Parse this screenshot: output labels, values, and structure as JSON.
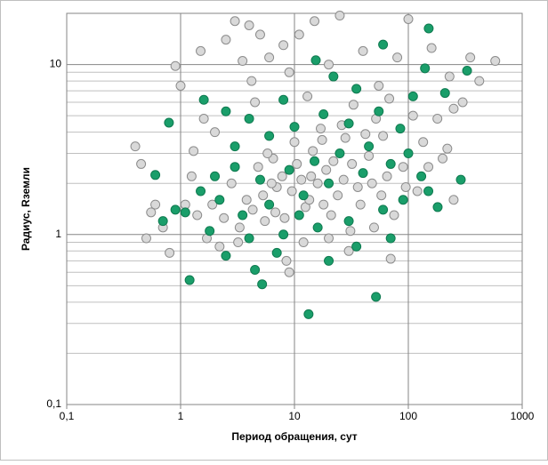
{
  "chart_data": {
    "type": "scatter",
    "x_label": "Период обращения, сут",
    "y_label": "Радиус, Rземли",
    "xlim": [
      0.1,
      1000
    ],
    "ylim": [
      0.1,
      20
    ],
    "log_x": true,
    "log_y": true,
    "grid": true,
    "minor_grid_y": true,
    "xticks": [
      {
        "value": 0.1,
        "label": "0,1"
      },
      1,
      10,
      100,
      1000
    ],
    "yticks": [
      {
        "value": 0.1,
        "label": "0,1"
      },
      1,
      10
    ],
    "series": [
      {
        "color": "#d9d9d9",
        "x": [
          0.4,
          0.45,
          0.5,
          0.6,
          0.7,
          0.8,
          0.9,
          1.0,
          1.1,
          1.3,
          1.5,
          1.7,
          2,
          2.2,
          2.5,
          3,
          3.2,
          3.5,
          4,
          4.2,
          4.5,
          5,
          5.5,
          6,
          6.5,
          7,
          8,
          8.5,
          9,
          10,
          11,
          12,
          13,
          14,
          15,
          17,
          18,
          20,
          22,
          25,
          28,
          30,
          33,
          36,
          40,
          45,
          50,
          55,
          60,
          70,
          80,
          90,
          100,
          110,
          120,
          135,
          160,
          180,
          200,
          230,
          250,
          300,
          350,
          420,
          580,
          2.8,
          3.8,
          4.8,
          5.8,
          6.8,
          7.8,
          9.5,
          10.5,
          12.5,
          14.5,
          16,
          19,
          24,
          27,
          32,
          38,
          48,
          58,
          65,
          75,
          95,
          150,
          220,
          1.4,
          1.9,
          2.4,
          3.3,
          4.3,
          5.3,
          6.3,
          8.2,
          11.5,
          13.5,
          17.5,
          21,
          26,
          31,
          42,
          52,
          68,
          0.55,
          1.25,
          1.6,
          9,
          20,
          250
        ],
        "values": [
          3.3,
          2.6,
          0.95,
          1.5,
          1.1,
          0.78,
          9.8,
          7.5,
          1.5,
          3.1,
          12,
          0.95,
          4,
          0.85,
          14,
          18,
          0.9,
          10.5,
          17,
          8,
          6,
          15,
          1.2,
          11,
          2.8,
          1.9,
          13,
          0.7,
          9,
          3.5,
          15,
          0.9,
          6.5,
          2.2,
          18,
          4.2,
          1.5,
          10,
          2.7,
          19.4,
          3.7,
          0.8,
          5.8,
          1.9,
          12,
          2.9,
          1.1,
          7.5,
          3.8,
          0.72,
          11,
          2.5,
          18.5,
          5,
          1.8,
          3.5,
          12.5,
          4.8,
          2.8,
          8.5,
          5.5,
          6,
          11,
          8,
          10.5,
          2.0,
          1.6,
          2.5,
          3.0,
          1.35,
          2.2,
          1.8,
          2.6,
          1.45,
          3.1,
          2.0,
          2.4,
          1.7,
          2.1,
          2.6,
          1.5,
          2.0,
          1.7,
          2.2,
          1.3,
          1.9,
          2.5,
          3.2,
          1.3,
          1.5,
          1.25,
          1.1,
          1.4,
          1.7,
          2.0,
          1.25,
          2.1,
          1.6,
          3.6,
          1.3,
          4.4,
          1.05,
          3.9,
          4.8,
          6.3,
          1.35,
          2.2,
          4.8,
          0.6,
          0.95,
          1.6
        ]
      },
      {
        "color": "#1a9e6a",
        "x": [
          151,
          60,
          15.4,
          328,
          0.79,
          0.6,
          289,
          1.2,
          5.2,
          13.3,
          52,
          0.7,
          181,
          140,
          110,
          210,
          22,
          35,
          8,
          1.6,
          2.5,
          4,
          6,
          10,
          18,
          30,
          55,
          85,
          45,
          25,
          15,
          9,
          5,
          3,
          2,
          1.5,
          1.1,
          0.9,
          2.2,
          3.5,
          6,
          12,
          20,
          40,
          70,
          100,
          130,
          90,
          60,
          30,
          16,
          8,
          4,
          2.5,
          4.5,
          7,
          20,
          35,
          11,
          3,
          1.8,
          150,
          70
        ],
        "values": [
          16.3,
          13.1,
          10.6,
          9.2,
          4.55,
          2.24,
          2.1,
          0.54,
          0.51,
          0.34,
          0.43,
          1.2,
          1.45,
          9.5,
          6.5,
          6.8,
          8.5,
          7.2,
          6.2,
          6.2,
          5.3,
          4.8,
          3.8,
          4.3,
          5.1,
          4.5,
          5.3,
          4.2,
          3.3,
          3.0,
          2.7,
          2.4,
          2.1,
          2.5,
          2.2,
          1.8,
          1.35,
          1.4,
          1.6,
          1.3,
          1.5,
          1.7,
          2.0,
          2.3,
          2.6,
          3.0,
          2.2,
          1.6,
          1.4,
          1.2,
          1.1,
          1.0,
          0.95,
          0.75,
          0.62,
          0.78,
          0.7,
          0.85,
          1.3,
          3.3,
          1.05,
          1.8,
          0.95
        ]
      }
    ]
  }
}
